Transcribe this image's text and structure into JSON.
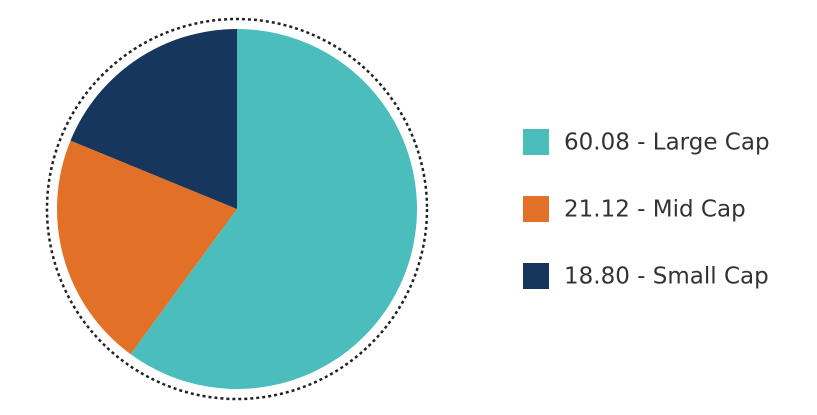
{
  "chart_data": {
    "type": "pie",
    "categories": [
      "60.08 - Large Cap",
      "21.12 - Mid Cap",
      "18.80 - Small Cap"
    ],
    "values": [
      60.08,
      21.12,
      18.8
    ],
    "colors": [
      "#4abdbc",
      "#e37027",
      "#17365d"
    ],
    "start_angle": 90,
    "direction": "clockwise",
    "outline": "dashed"
  }
}
